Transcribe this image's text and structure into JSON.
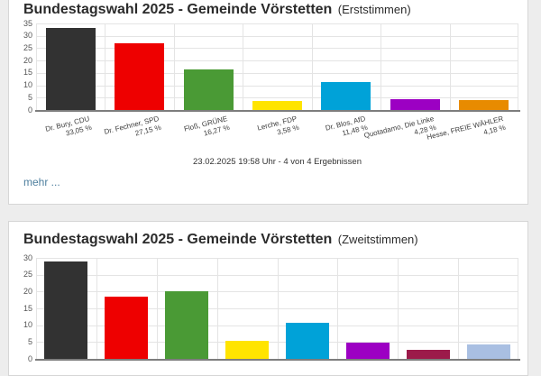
{
  "page": {
    "background": "#ededed",
    "accent_link_color": "#4e7f9e"
  },
  "cards": [
    {
      "title_main": "Bundestagswahl 2025 - Gemeinde Vörstetten",
      "title_suffix": "(Erststimmen)",
      "footer_note": "23.02.2025 19:58 Uhr - 4 von 4 Ergebnissen",
      "more_link": "mehr ..."
    },
    {
      "title_main": "Bundestagswahl 2025 - Gemeinde Vörstetten",
      "title_suffix": "(Zweitstimmen)"
    }
  ],
  "chart_data": [
    {
      "type": "bar",
      "title": "Bundestagswahl 2025 - Gemeinde Vörstetten (Erststimmen)",
      "categories": [
        "Dr. Bury, CDU",
        "Dr. Fechner, SPD",
        "Floß, GRÜNE",
        "Lerche, FDP",
        "Dr. Blos, AfD",
        "Quotadamo, Die Linke",
        "Hesse, FREIE WÄHLER"
      ],
      "value_labels": [
        "33,05 %",
        "27,15 %",
        "16,27 %",
        "3,58 %",
        "11,48 %",
        "4,28 %",
        "4,18 %"
      ],
      "values": [
        33.05,
        27.15,
        16.27,
        3.58,
        11.48,
        4.28,
        4.18
      ],
      "colors": [
        "#323232",
        "#ee0000",
        "#4a9a35",
        "#ffe400",
        "#00a2d8",
        "#9c00c3",
        "#e88b00"
      ],
      "ylabel": "",
      "xlabel": "",
      "ylim": [
        0,
        35
      ],
      "yticks": [
        0,
        5,
        10,
        15,
        20,
        25,
        30,
        35
      ],
      "grid": true,
      "legend": false
    },
    {
      "type": "bar",
      "title": "Bundestagswahl 2025 - Gemeinde Vörstetten (Zweitstimmen)",
      "categories": [],
      "value_labels": [],
      "values": [
        28.9,
        18.6,
        20.1,
        5.4,
        10.7,
        4.9,
        2.6,
        4.4
      ],
      "colors": [
        "#323232",
        "#ee0000",
        "#4a9a35",
        "#ffe400",
        "#00a2d8",
        "#9c00c3",
        "#9c1a4a",
        "#a9bfe2"
      ],
      "ylabel": "",
      "xlabel": "",
      "ylim": [
        0,
        30
      ],
      "yticks": [
        0,
        5,
        10,
        15,
        20,
        25,
        30
      ],
      "grid": true,
      "legend": false,
      "labels_cut_off_by_viewport": true
    }
  ]
}
